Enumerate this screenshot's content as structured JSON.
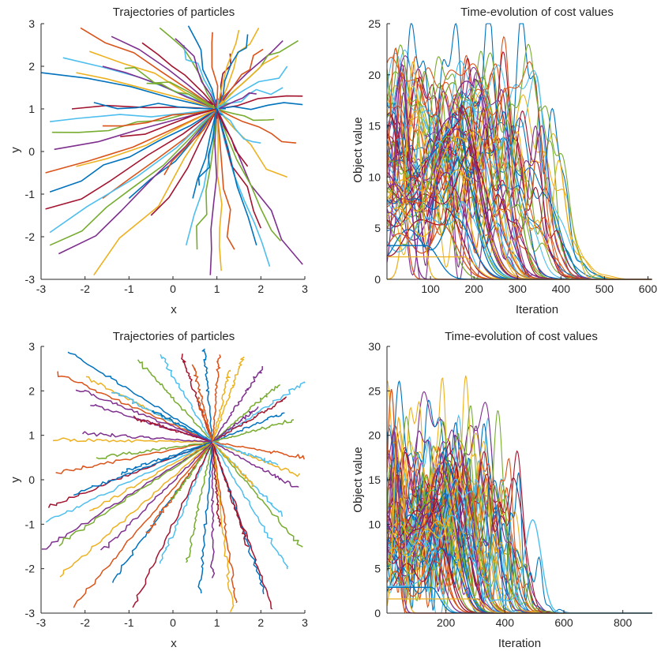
{
  "colors": [
    "#0072BD",
    "#D95319",
    "#EDB120",
    "#7E2F8E",
    "#77AC30",
    "#4DBEEE",
    "#A2142F"
  ],
  "chart_data": [
    {
      "id": "traj-top",
      "type": "line",
      "title": "Trajectories of particles",
      "xlabel": "x",
      "ylabel": "y",
      "xlim": [
        -3,
        3
      ],
      "ylim": [
        -3,
        3
      ],
      "xticks": [
        -3,
        -2,
        -1,
        0,
        1,
        2,
        3
      ],
      "yticks": [
        -3,
        -2,
        -1,
        0,
        1,
        2,
        3
      ],
      "xtick_labels": [
        "-3",
        "-2",
        "-1",
        "0",
        "1",
        "2",
        "3"
      ],
      "ytick_labels": [
        "-3",
        "-2",
        "-1",
        "0",
        "1",
        "2",
        "3"
      ],
      "grid": false,
      "target": [
        1,
        1
      ],
      "series_style": "smooth-trajectories",
      "starts": [
        [
          -3.0,
          1.85
        ],
        [
          -2.1,
          2.9
        ],
        [
          -1.9,
          2.35
        ],
        [
          -1.4,
          2.7
        ],
        [
          -0.3,
          2.9
        ],
        [
          -2.5,
          2.2
        ],
        [
          -0.7,
          2.55
        ],
        [
          0.35,
          2.95
        ],
        [
          0.9,
          2.8
        ],
        [
          1.95,
          2.9
        ],
        [
          2.5,
          2.6
        ],
        [
          2.85,
          2.6
        ],
        [
          2.5,
          1.5
        ],
        [
          2.95,
          1.3
        ],
        [
          2.95,
          1.1
        ],
        [
          2.8,
          0.2
        ],
        [
          2.6,
          -0.6
        ],
        [
          2.95,
          -2.65
        ],
        [
          2.45,
          -2.1
        ],
        [
          2.2,
          -2.7
        ],
        [
          2.0,
          -1.8
        ],
        [
          1.9,
          -2.2
        ],
        [
          1.4,
          -2.3
        ],
        [
          1.1,
          -2.8
        ],
        [
          0.85,
          -2.9
        ],
        [
          0.55,
          -2.3
        ],
        [
          0.3,
          -2.2
        ],
        [
          -0.5,
          -1.5
        ],
        [
          -1.0,
          -1.1
        ],
        [
          -1.6,
          -1.1
        ],
        [
          -1.8,
          -2.9
        ],
        [
          -2.6,
          -2.4
        ],
        [
          -2.8,
          -2.2
        ],
        [
          -2.8,
          -1.9
        ],
        [
          -2.9,
          -1.35
        ],
        [
          -2.8,
          -0.95
        ],
        [
          -2.9,
          -0.5
        ],
        [
          -2.2,
          -0.35
        ],
        [
          -2.7,
          0.05
        ],
        [
          -2.75,
          0.45
        ],
        [
          -2.8,
          0.7
        ],
        [
          -2.3,
          1.0
        ],
        [
          -1.8,
          1.15
        ],
        [
          -1.6,
          0.6
        ],
        [
          -2.2,
          1.85
        ],
        [
          -1.6,
          2.0
        ],
        [
          -0.6,
          1.6
        ],
        [
          0.25,
          2.5
        ],
        [
          1.3,
          2.3
        ],
        [
          1.7,
          2.75
        ],
        [
          2.05,
          2.4
        ],
        [
          2.4,
          2.25
        ],
        [
          1.9,
          1.35
        ],
        [
          2.3,
          0.75
        ],
        [
          2.0,
          0.2
        ],
        [
          1.7,
          -0.35
        ],
        [
          0.45,
          -1.1
        ],
        [
          -0.2,
          -0.55
        ],
        [
          1.5,
          2.85
        ],
        [
          0.05,
          2.65
        ],
        [
          -1.1,
          1.95
        ],
        [
          2.6,
          2.0
        ],
        [
          -1.2,
          0.35
        ],
        [
          0.6,
          -0.8
        ]
      ],
      "note": ""
    },
    {
      "id": "cost-top",
      "type": "line",
      "title": "Time-evolution of cost values",
      "xlabel": "Iteration",
      "ylabel": "Object value",
      "xlim": [
        0,
        610
      ],
      "ylim": [
        0,
        25
      ],
      "xticks": [
        100,
        200,
        300,
        400,
        500,
        600
      ],
      "yticks": [
        0,
        5,
        10,
        15,
        20,
        25
      ],
      "xtick_labels": [
        "100",
        "200",
        "300",
        "400",
        "500",
        "600"
      ],
      "ytick_labels": [
        "0",
        "5",
        "10",
        "15",
        "20",
        "25"
      ],
      "grid": false,
      "series_style": "decaying-cost",
      "bumps": [
        [
          200,
          19.6,
          48
        ],
        [
          160,
          18.3,
          42
        ],
        [
          185,
          17.6,
          44
        ],
        [
          170,
          17.0,
          40
        ],
        [
          150,
          16.2,
          38
        ],
        [
          195,
          15.5,
          46
        ],
        [
          140,
          14.9,
          36
        ],
        [
          175,
          14.2,
          42
        ],
        [
          155,
          13.5,
          40
        ],
        [
          130,
          12.8,
          35
        ],
        [
          190,
          12.1,
          44
        ],
        [
          165,
          11.4,
          40
        ],
        [
          120,
          10.6,
          34
        ],
        [
          180,
          10.0,
          42
        ],
        [
          145,
          9.2,
          38
        ],
        [
          110,
          8.4,
          32
        ],
        [
          170,
          7.6,
          40
        ],
        [
          135,
          6.9,
          36
        ],
        [
          155,
          6.1,
          38
        ],
        [
          125,
          5.4,
          34
        ],
        [
          185,
          14.6,
          44
        ],
        [
          165,
          16.8,
          41
        ]
      ],
      "plateaus": [
        [
          3.3,
          90
        ],
        [
          2.2,
          175
        ]
      ],
      "peak_early": [
        [
          20,
          22.6
        ],
        [
          60,
          21.3
        ],
        [
          35,
          21.0
        ]
      ]
    },
    {
      "id": "traj-bottom",
      "type": "line",
      "title": "Trajectories of particles",
      "xlabel": "x",
      "ylabel": "y",
      "xlim": [
        -3,
        3
      ],
      "ylim": [
        -3,
        3
      ],
      "xticks": [
        -3,
        -2,
        -1,
        0,
        1,
        2,
        3
      ],
      "yticks": [
        -3,
        -2,
        -1,
        0,
        1,
        2,
        3
      ],
      "xtick_labels": [
        "-3",
        "-2",
        "-1",
        "0",
        "1",
        "2",
        "3"
      ],
      "ytick_labels": [
        "-3",
        "-2",
        "-1",
        "0",
        "1",
        "2",
        "3"
      ],
      "grid": false,
      "target": [
        0.9,
        0.85
      ],
      "series_style": "noisy-trajectories",
      "starts": [
        [
          -2.4,
          2.9
        ],
        [
          -2.65,
          2.4
        ],
        [
          -1.95,
          2.3
        ],
        [
          -1.9,
          1.7
        ],
        [
          -0.8,
          2.7
        ],
        [
          -0.3,
          2.85
        ],
        [
          0.2,
          2.8
        ],
        [
          0.7,
          2.95
        ],
        [
          1.05,
          2.8
        ],
        [
          1.6,
          2.75
        ],
        [
          2.05,
          2.55
        ],
        [
          2.4,
          2.15
        ],
        [
          3.0,
          2.2
        ],
        [
          2.6,
          1.85
        ],
        [
          2.5,
          1.5
        ],
        [
          3.0,
          0.5
        ],
        [
          2.9,
          0.1
        ],
        [
          2.85,
          -0.2
        ],
        [
          2.95,
          -1.55
        ],
        [
          2.65,
          -2.05
        ],
        [
          2.3,
          -2.95
        ],
        [
          2.1,
          -2.6
        ],
        [
          1.45,
          -2.8
        ],
        [
          1.35,
          -2.95
        ],
        [
          0.9,
          -2.2
        ],
        [
          0.3,
          -1.9
        ],
        [
          -0.3,
          -1.9
        ],
        [
          -0.9,
          -2.85
        ],
        [
          -1.4,
          -2.3
        ],
        [
          -2.3,
          -2.9
        ],
        [
          -2.6,
          -2.2
        ],
        [
          -3.0,
          -1.6
        ],
        [
          -2.6,
          -1.45
        ],
        [
          -2.9,
          -0.95
        ],
        [
          -2.85,
          -0.6
        ],
        [
          -2.3,
          -0.35
        ],
        [
          -2.65,
          0.15
        ],
        [
          -2.7,
          0.9
        ],
        [
          -2.1,
          1.05
        ],
        [
          -1.7,
          0.5
        ],
        [
          -1.4,
          2.0
        ],
        [
          -0.9,
          1.4
        ],
        [
          -0.45,
          1.55
        ],
        [
          0.45,
          2.6
        ],
        [
          1.3,
          2.5
        ],
        [
          1.9,
          1.6
        ],
        [
          2.75,
          1.35
        ],
        [
          2.5,
          -0.8
        ],
        [
          1.7,
          -1.5
        ],
        [
          0.6,
          -2.55
        ],
        [
          -0.6,
          -1.2
        ],
        [
          -1.9,
          -0.7
        ],
        [
          -2.2,
          2.05
        ],
        [
          -0.05,
          -0.5
        ],
        [
          2.35,
          0.35
        ],
        [
          1.05,
          -1.05
        ],
        [
          -1.2,
          0.15
        ],
        [
          0.55,
          1.85
        ],
        [
          1.85,
          -0.15
        ],
        [
          -1.6,
          -1.6
        ]
      ]
    },
    {
      "id": "cost-bottom",
      "type": "line",
      "title": "Time-evolution of cost values",
      "xlabel": "Iteration",
      "ylabel": "Object value",
      "xlim": [
        0,
        900
      ],
      "ylim": [
        0,
        30
      ],
      "xticks": [
        200,
        400,
        600,
        800
      ],
      "yticks": [
        0,
        5,
        10,
        15,
        20,
        25,
        30
      ],
      "xtick_labels": [
        "200",
        "400",
        "600",
        "800"
      ],
      "ytick_labels": [
        "0",
        "5",
        "10",
        "15",
        "20",
        "25",
        "30"
      ],
      "grid": false,
      "series_style": "decaying-cost",
      "bumps": [
        [
          230,
          20.0,
          50
        ],
        [
          245,
          19.4,
          48
        ],
        [
          300,
          15.0,
          40
        ],
        [
          215,
          17.9,
          46
        ],
        [
          200,
          17.2,
          44
        ],
        [
          260,
          16.5,
          46
        ],
        [
          185,
          15.8,
          42
        ],
        [
          225,
          15.2,
          44
        ],
        [
          170,
          14.4,
          40
        ],
        [
          240,
          13.7,
          44
        ],
        [
          160,
          12.9,
          38
        ],
        [
          205,
          12.2,
          42
        ],
        [
          150,
          11.4,
          38
        ],
        [
          195,
          10.6,
          40
        ],
        [
          140,
          9.8,
          36
        ],
        [
          220,
          9.0,
          42
        ],
        [
          130,
          8.2,
          34
        ],
        [
          180,
          7.4,
          38
        ],
        [
          210,
          6.6,
          40
        ],
        [
          165,
          5.8,
          36
        ],
        [
          250,
          14.2,
          46
        ],
        [
          190,
          16.0,
          42
        ]
      ],
      "secondary_bump": [
        495,
        10.3,
        40
      ],
      "plateaus": [
        [
          2.9,
          150
        ],
        [
          1.6,
          300
        ]
      ],
      "peak_early": [
        [
          15,
          25.2
        ],
        [
          40,
          22.0
        ],
        [
          25,
          20.5
        ]
      ]
    }
  ]
}
